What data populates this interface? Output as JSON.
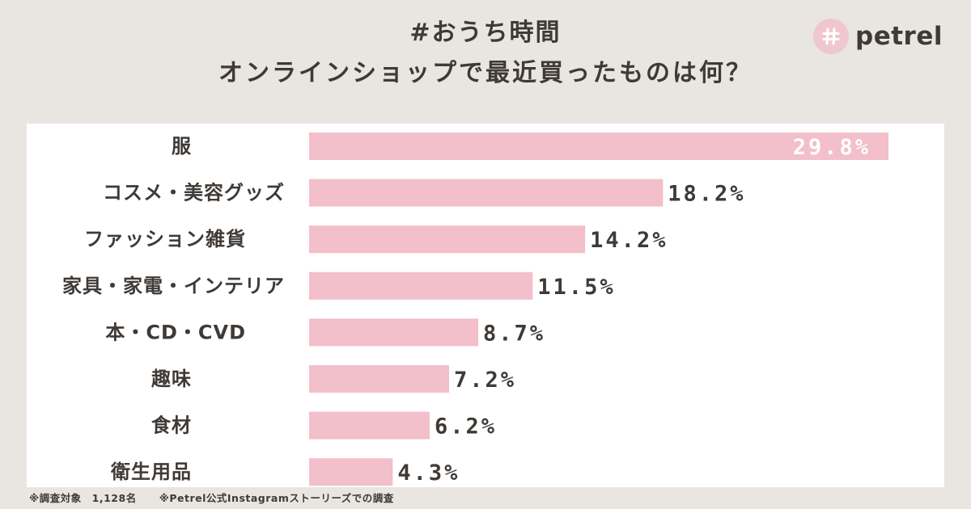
{
  "header": {
    "title_line1": "#おうち時間",
    "title_line2": "オンラインショップで最近買ったものは何？"
  },
  "logo": {
    "icon": "hash-icon",
    "text": "petrel",
    "badge_color": "#f0c7cf"
  },
  "chart_data": {
    "type": "bar",
    "orientation": "horizontal",
    "categories": [
      "服",
      "コスメ・美容グッズ",
      "ファッション雑貨",
      "家具・家電・インテリア",
      "本・CD・CVD",
      "趣味",
      "食材",
      "衛生用品"
    ],
    "values": [
      29.8,
      18.2,
      14.2,
      11.5,
      8.7,
      7.2,
      6.2,
      4.3
    ],
    "value_labels": [
      "29.8%",
      "18.2%",
      "14.2%",
      "11.5%",
      "8.7%",
      "7.2%",
      "6.2%",
      "4.3%"
    ],
    "unit": "%",
    "xlim": [
      0,
      29.8
    ],
    "bar_color": "#f2bfcb",
    "grid": false,
    "legend": "none"
  },
  "footnote": {
    "survey_target": "※調査対象　1,128名",
    "source": "※Petrel公式Instagramストーリーズでの調査"
  },
  "colors": {
    "background": "#e9e5e0",
    "panel": "#ffffff",
    "text": "#3f3a36"
  }
}
